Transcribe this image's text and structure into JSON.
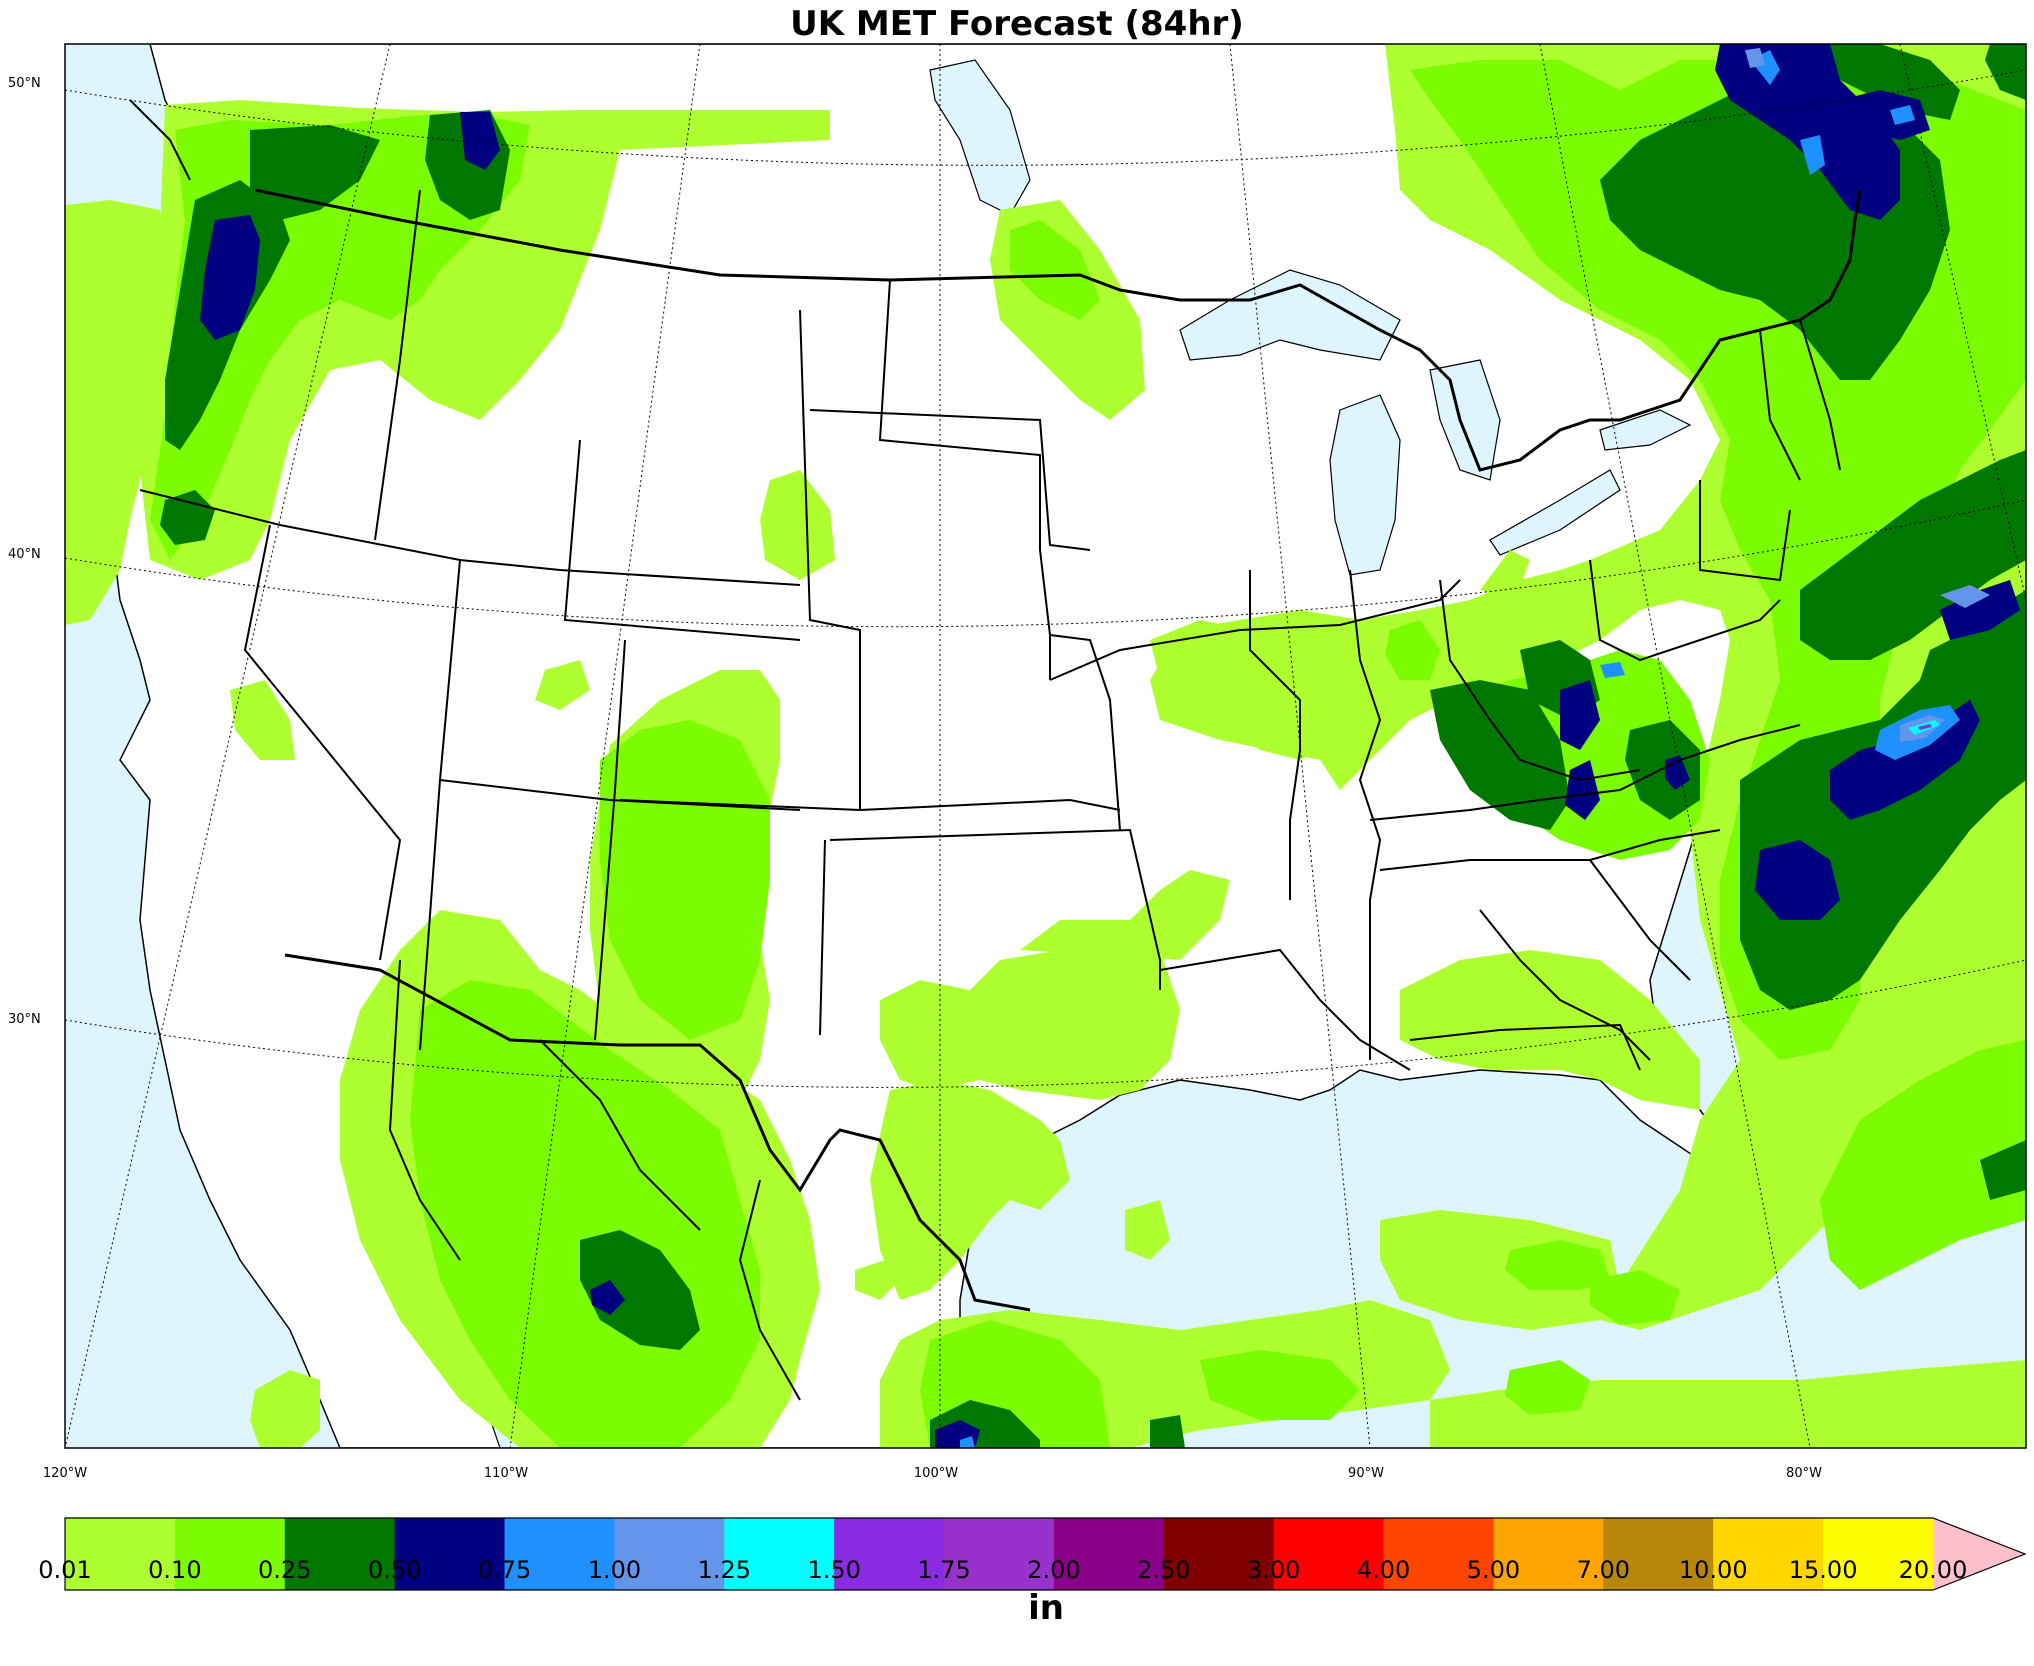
{
  "title": "UK MET Forecast (84hr)",
  "lat_labels": [
    "50°N",
    "40°N",
    "30°N"
  ],
  "lon_labels": [
    "120°W",
    "110°W",
    "100°W",
    "90°W",
    "80°W"
  ],
  "colorbar": {
    "unit": "in",
    "ticks": [
      "0.01",
      "0.10",
      "0.25",
      "0.50",
      "0.75",
      "1.00",
      "1.25",
      "1.50",
      "1.75",
      "2.00",
      "2.50",
      "3.00",
      "4.00",
      "5.00",
      "7.00",
      "10.00",
      "15.00",
      "20.00"
    ],
    "colors": [
      "#adff2f",
      "#7cfc00",
      "#007800",
      "#000080",
      "#1e90ff",
      "#6495ed",
      "#00ffff",
      "#8a2be2",
      "#9932cc",
      "#8b008b",
      "#800000",
      "#ff0000",
      "#ff4500",
      "#ffa500",
      "#b8860b",
      "#ffd700",
      "#ffff00"
    ],
    "extend_color": "#ffc0cb"
  },
  "colors": {
    "water": "#dff5fd",
    "land": "#ffffff"
  }
}
